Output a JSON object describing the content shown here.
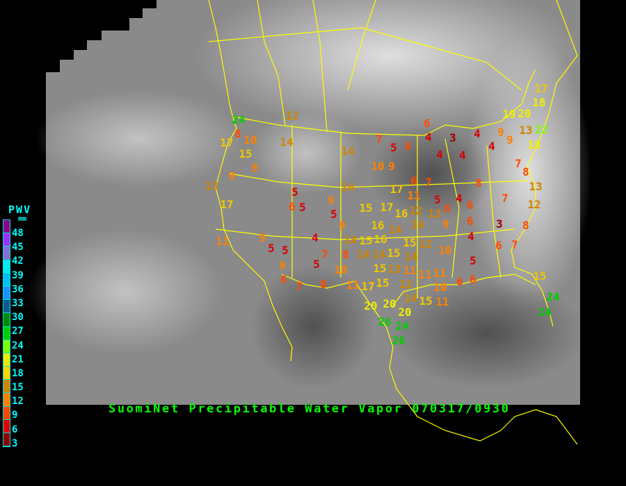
{
  "title": "SuomiNet Precipitable Water Vapor 070317/0930",
  "legend": {
    "header": "PWV",
    "unit": "mm",
    "ticks": [
      "48",
      "45",
      "42",
      "39",
      "36",
      "33",
      "30",
      "27",
      "24",
      "21",
      "18",
      "15",
      "12",
      "9",
      "6",
      "3"
    ],
    "swatch_colors": [
      "#8b008b",
      "#9b30ff",
      "#8470d0",
      "#00eeee",
      "#00bfee",
      "#1e90ff",
      "#0a5a8c",
      "#008b00",
      "#00cd00",
      "#7cfc00",
      "#eeee00",
      "#ffd700",
      "#cd8500",
      "#ff8000",
      "#ff4500",
      "#dd0000",
      "#8b0000"
    ]
  },
  "colors": {
    "background": "#000000",
    "borders": "#ffff00",
    "title": "#00ff00",
    "legend_text": "#00ffff"
  },
  "stations": [
    "24",
    "8",
    "17",
    "10",
    "15",
    "9",
    "9",
    "13",
    "17",
    "12",
    "14",
    "14",
    "14",
    "5",
    "6",
    "5",
    "9",
    "5",
    "15",
    "17",
    "7",
    "5",
    "6",
    "6",
    "4",
    "3",
    "4",
    "4",
    "4",
    "4",
    "9",
    "9",
    "13",
    "22",
    "17",
    "18",
    "20",
    "19",
    "18",
    "7",
    "8",
    "13",
    "12",
    "10",
    "9",
    "6",
    "7",
    "17",
    "11",
    "5",
    "4",
    "6",
    "8",
    "7",
    "16",
    "12",
    "14",
    "13",
    "6",
    "16",
    "16",
    "15",
    "14",
    "15",
    "15",
    "14",
    "14",
    "12",
    "14",
    "15",
    "13",
    "11",
    "15",
    "12",
    "11",
    "11",
    "10",
    "17",
    "11",
    "14",
    "15",
    "11",
    "6",
    "6",
    "10",
    "9",
    "6",
    "4",
    "5",
    "3",
    "6",
    "7",
    "8",
    "15",
    "24",
    "24",
    "20",
    "20",
    "20",
    "26",
    "24",
    "26",
    "11",
    "9",
    "5",
    "5",
    "9",
    "6",
    "7",
    "8",
    "4",
    "7",
    "5",
    "8",
    "10",
    "14",
    "9"
  ]
}
